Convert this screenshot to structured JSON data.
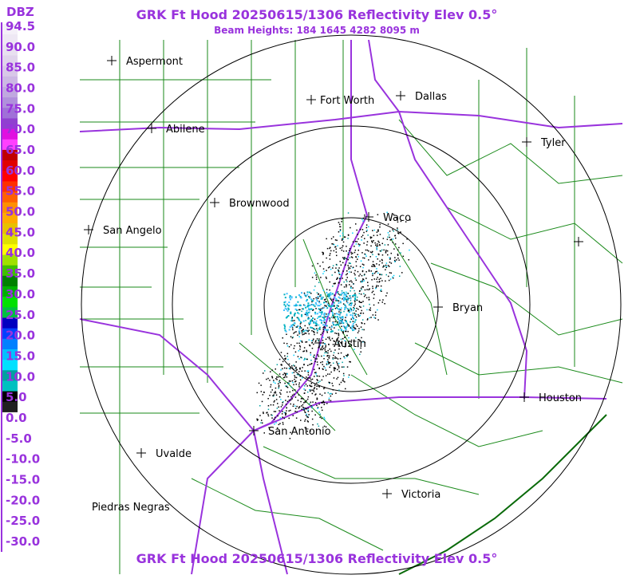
{
  "header": {
    "title": "GRK Ft Hood 20250615/1306 Reflectivity Elev 0.5°",
    "beam_heights": "Beam Heights: 184 1645 4282 8095 m",
    "footer_title": "GRK Ft Hood 20250615/1306 Reflectivity Elev 0.5°"
  },
  "legend": {
    "unit": "DBZ",
    "labels": [
      "94.5",
      "90.0",
      "85.0",
      "80.0",
      "75.0",
      "70.0",
      "65.0",
      "60.0",
      "55.0",
      "50.0",
      "45.0",
      "40.0",
      "35.0",
      "30.0",
      "25.0",
      "20.0",
      "15.0",
      "10.0",
      "5.0",
      "0.0",
      "-5.0",
      "-10.0",
      "-15.0",
      "-20.0",
      "-25.0",
      "-30.0"
    ]
  },
  "cities": [
    {
      "label": "Aspermont"
    },
    {
      "label": "Abilene"
    },
    {
      "label": "Fort Worth"
    },
    {
      "label": "Dallas"
    },
    {
      "label": "Tyler"
    },
    {
      "label": "Brownwood"
    },
    {
      "label": "Waco"
    },
    {
      "label": "San Angelo"
    },
    {
      "label": "Bryan"
    },
    {
      "label": "Austin"
    },
    {
      "label": "Houston"
    },
    {
      "label": "San Antonio"
    },
    {
      "label": "Uvalde"
    },
    {
      "label": "Victoria"
    },
    {
      "label": "Piedras Negras"
    }
  ]
}
